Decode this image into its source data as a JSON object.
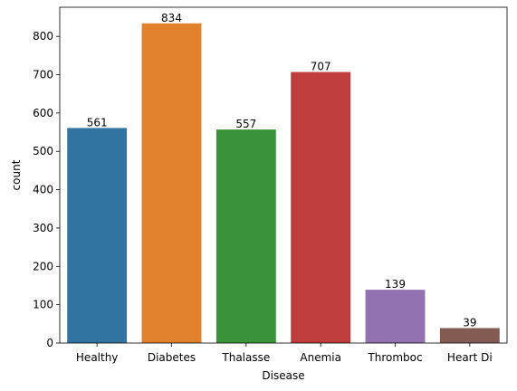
{
  "chart_data": {
    "type": "bar",
    "title": "",
    "xlabel": "Disease",
    "ylabel": "count",
    "categories": [
      "Healthy",
      "Diabetes",
      "Thalasse",
      "Anemia",
      "Thromboc",
      "Heart Di"
    ],
    "values": [
      561,
      834,
      557,
      707,
      139,
      39
    ],
    "colors": [
      "#3274a1",
      "#e1812c",
      "#3a923a",
      "#c03d3e",
      "#9372b2",
      "#845b53"
    ],
    "ylim": [
      0,
      876
    ],
    "yticks": [
      0,
      100,
      200,
      300,
      400,
      500,
      600,
      700,
      800
    ],
    "grid": false,
    "legend": "none"
  }
}
